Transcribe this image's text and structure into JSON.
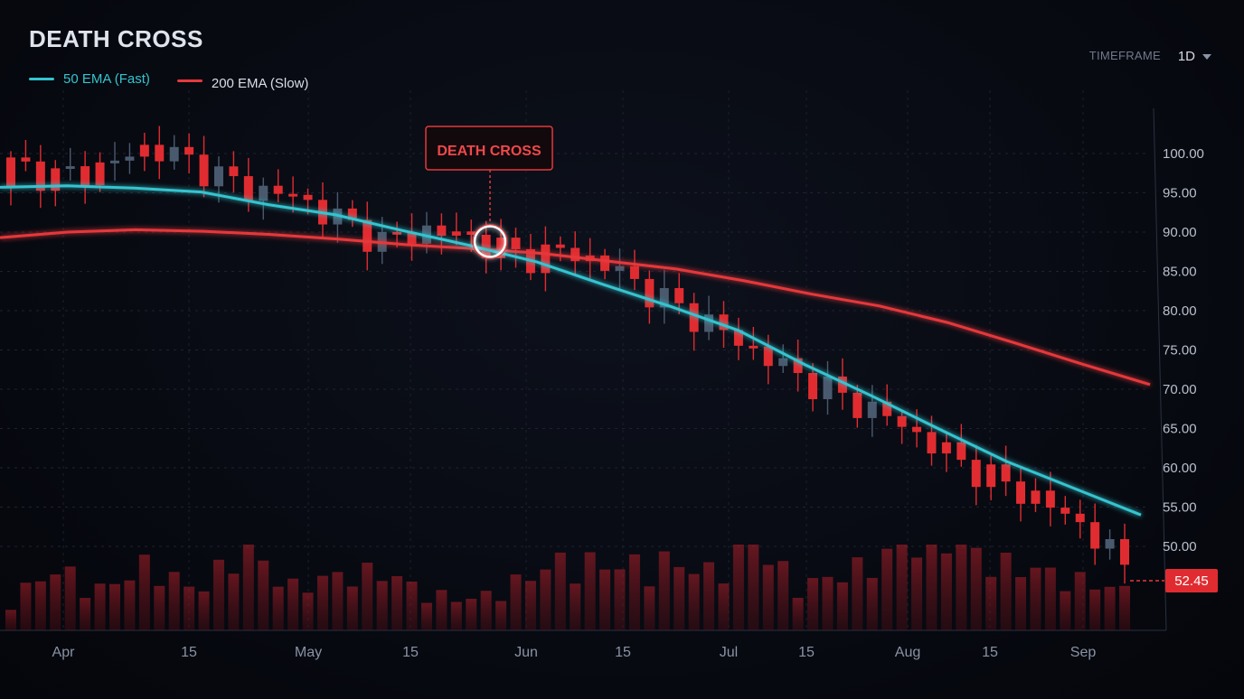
{
  "header": {
    "title": "DEATH CROSS",
    "timeframe_label": "TIMEFRAME",
    "timeframe_value": "1D"
  },
  "legend": {
    "fast": {
      "label": "50 EMA (Fast)",
      "color": "#34c4cf"
    },
    "slow": {
      "label": "200 EMA (Slow)",
      "color": "#e5393b"
    }
  },
  "colors": {
    "bear": "#e02c30",
    "bull": "#4a5a6e",
    "price_tag": "#e02c30"
  },
  "chart_data": {
    "type": "candlestick",
    "title": "DEATH CROSS",
    "x_tick_labels": [
      "Apr",
      "15",
      "May",
      "15",
      "Jun",
      "15",
      "Jul",
      "15",
      "Aug",
      "15",
      "Sep"
    ],
    "y_tick_labels": [
      "100.00",
      "95.00",
      "90.00",
      "85.00",
      "80.00",
      "75.00",
      "70.00",
      "65.00",
      "60.00",
      "55.00",
      "50.00"
    ],
    "ylim": [
      45,
      107
    ],
    "grid": true,
    "last_price": "52.45",
    "annotation": {
      "label": "DEATH CROSS",
      "value": 88.8
    },
    "series": [
      {
        "name": "50 EMA (Fast)",
        "type": "line",
        "values": [
          95.7,
          95.9,
          95.6,
          95.1,
          93.5,
          92.2,
          90.2,
          88.3,
          86.2,
          83.3,
          80.5,
          77.5,
          73.1,
          69.1,
          64.9,
          60.8,
          57.4,
          54.0
        ]
      },
      {
        "name": "200 EMA (Slow)",
        "type": "line",
        "values": [
          89.3,
          90.0,
          90.3,
          90.1,
          89.7,
          89.1,
          88.4,
          87.9,
          87.3,
          86.3,
          85.3,
          83.8,
          82.1,
          80.6,
          78.5,
          75.9,
          73.2,
          70.6
        ]
      },
      {
        "name": "",
        "type": "candles",
        "open": [
          95.8,
          98.6,
          97.2,
          98.4,
          101.2,
          97.7,
          96.8,
          96.6,
          91.2,
          90.8,
          90.1,
          91.1,
          89.0,
          87.4,
          84.6,
          81.8,
          78.3,
          74.9,
          72.0,
          69.0,
          66.4,
          61.8,
          58.6,
          55.4,
          51.6
        ],
        "close": [
          98.6,
          96.9,
          98.3,
          100.9,
          98.6,
          95.6,
          94.8,
          91.8,
          88.8,
          90.3,
          89.1,
          86.8,
          87.6,
          85.3,
          81.5,
          78.5,
          75.0,
          71.6,
          68.8,
          66.2,
          62.4,
          59.0,
          56.4,
          53.1,
          47.5
        ],
        "volume": [
          0.18,
          0.34,
          0.22,
          0.38,
          0.21,
          0.47,
          0.24,
          0.3,
          0.33,
          0.2,
          0.17,
          0.28,
          0.4,
          0.35,
          0.39,
          0.32,
          0.49,
          0.24,
          0.32,
          0.43,
          0.56,
          0.39,
          0.34,
          0.28,
          0.22
        ],
        "x_position_of_cross": 28.5
      }
    ]
  }
}
